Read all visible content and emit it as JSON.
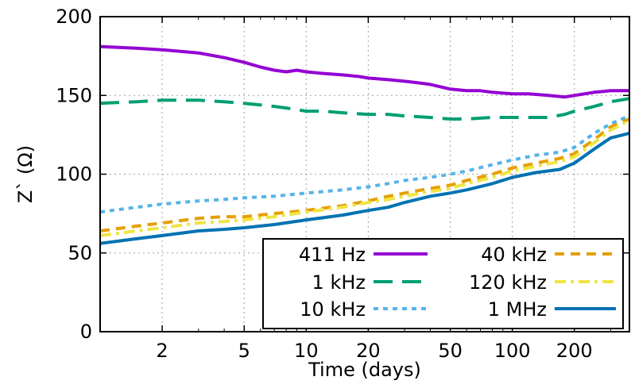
{
  "chart_data": {
    "type": "line",
    "xlabel": "Time (days)",
    "ylabel": "Z` (Ω)",
    "x_scale": "log",
    "xlim": [
      1,
      370
    ],
    "ylim": [
      0,
      200
    ],
    "x_ticks": [
      2,
      5,
      10,
      20,
      50,
      100,
      200
    ],
    "x_tick_labels": [
      "2",
      "5",
      "10",
      "20",
      "50",
      "100",
      "200"
    ],
    "y_ticks": [
      0,
      50,
      100,
      150,
      200
    ],
    "y_tick_labels": [
      "0",
      "50",
      "100",
      "150",
      "200"
    ],
    "grid": true,
    "legend_position": "bottom-right",
    "series": [
      {
        "name": "411 Hz",
        "color": "#9400d3",
        "dash": "solid",
        "points": [
          [
            1,
            181
          ],
          [
            1.5,
            180
          ],
          [
            2,
            179
          ],
          [
            3,
            177
          ],
          [
            4,
            174
          ],
          [
            5,
            171
          ],
          [
            6,
            168
          ],
          [
            7,
            166
          ],
          [
            8,
            165
          ],
          [
            9,
            166
          ],
          [
            10,
            165
          ],
          [
            12,
            164
          ],
          [
            15,
            163
          ],
          [
            18,
            162
          ],
          [
            20,
            161
          ],
          [
            25,
            160
          ],
          [
            30,
            159
          ],
          [
            35,
            158
          ],
          [
            40,
            157
          ],
          [
            50,
            154
          ],
          [
            60,
            153
          ],
          [
            70,
            153
          ],
          [
            80,
            152
          ],
          [
            100,
            151
          ],
          [
            120,
            151
          ],
          [
            150,
            150
          ],
          [
            180,
            149
          ],
          [
            200,
            150
          ],
          [
            250,
            152
          ],
          [
            300,
            153
          ],
          [
            370,
            153
          ]
        ]
      },
      {
        "name": "1 kHz",
        "color": "#009e73",
        "dash": "long",
        "points": [
          [
            1,
            145
          ],
          [
            1.5,
            146
          ],
          [
            2,
            147
          ],
          [
            3,
            147
          ],
          [
            4,
            146
          ],
          [
            5,
            145
          ],
          [
            6,
            144
          ],
          [
            7,
            143
          ],
          [
            8,
            142
          ],
          [
            10,
            140
          ],
          [
            12,
            140
          ],
          [
            15,
            139
          ],
          [
            20,
            138
          ],
          [
            25,
            138
          ],
          [
            30,
            137
          ],
          [
            40,
            136
          ],
          [
            50,
            135
          ],
          [
            60,
            135
          ],
          [
            80,
            136
          ],
          [
            100,
            136
          ],
          [
            150,
            136
          ],
          [
            180,
            138
          ],
          [
            200,
            140
          ],
          [
            250,
            143
          ],
          [
            300,
            146
          ],
          [
            370,
            148
          ]
        ]
      },
      {
        "name": "10 kHz",
        "color": "#56b4e9",
        "dash": "dotted",
        "points": [
          [
            1,
            76
          ],
          [
            1.5,
            79
          ],
          [
            2,
            81
          ],
          [
            3,
            83
          ],
          [
            4,
            84
          ],
          [
            5,
            85
          ],
          [
            7,
            86
          ],
          [
            10,
            88
          ],
          [
            15,
            90
          ],
          [
            20,
            92
          ],
          [
            25,
            94
          ],
          [
            30,
            96
          ],
          [
            40,
            98
          ],
          [
            50,
            100
          ],
          [
            60,
            102
          ],
          [
            80,
            106
          ],
          [
            100,
            109
          ],
          [
            130,
            112
          ],
          [
            170,
            114
          ],
          [
            200,
            117
          ],
          [
            250,
            126
          ],
          [
            300,
            132
          ],
          [
            370,
            137
          ]
        ]
      },
      {
        "name": "40 kHz",
        "color": "#e69f00",
        "dash": "dashed",
        "points": [
          [
            1,
            64
          ],
          [
            1.5,
            67
          ],
          [
            2,
            69
          ],
          [
            3,
            72
          ],
          [
            4,
            73
          ],
          [
            5,
            73
          ],
          [
            7,
            75
          ],
          [
            10,
            77
          ],
          [
            15,
            80
          ],
          [
            20,
            83
          ],
          [
            25,
            86
          ],
          [
            30,
            88
          ],
          [
            40,
            91
          ],
          [
            50,
            93
          ],
          [
            60,
            96
          ],
          [
            80,
            100
          ],
          [
            100,
            104
          ],
          [
            130,
            107
          ],
          [
            170,
            110
          ],
          [
            200,
            113
          ],
          [
            250,
            122
          ],
          [
            300,
            130
          ],
          [
            370,
            135
          ]
        ]
      },
      {
        "name": "120 kHz",
        "color": "#f0e442",
        "dash": "dashdot",
        "points": [
          [
            1,
            61
          ],
          [
            1.5,
            64
          ],
          [
            2,
            66
          ],
          [
            3,
            69
          ],
          [
            4,
            70
          ],
          [
            5,
            71
          ],
          [
            7,
            73
          ],
          [
            10,
            76
          ],
          [
            15,
            79
          ],
          [
            20,
            82
          ],
          [
            25,
            84
          ],
          [
            30,
            86
          ],
          [
            40,
            89
          ],
          [
            50,
            91
          ],
          [
            60,
            94
          ],
          [
            80,
            98
          ],
          [
            100,
            102
          ],
          [
            130,
            105
          ],
          [
            170,
            108
          ],
          [
            200,
            111
          ],
          [
            250,
            120
          ],
          [
            300,
            128
          ],
          [
            370,
            134
          ]
        ]
      },
      {
        "name": "1 MHz",
        "color": "#0072b2",
        "dash": "solid",
        "points": [
          [
            1,
            56
          ],
          [
            1.5,
            59
          ],
          [
            2,
            61
          ],
          [
            3,
            64
          ],
          [
            4,
            65
          ],
          [
            5,
            66
          ],
          [
            7,
            68
          ],
          [
            10,
            71
          ],
          [
            15,
            74
          ],
          [
            20,
            77
          ],
          [
            25,
            79
          ],
          [
            30,
            82
          ],
          [
            40,
            86
          ],
          [
            50,
            88
          ],
          [
            60,
            90
          ],
          [
            80,
            94
          ],
          [
            100,
            98
          ],
          [
            130,
            101
          ],
          [
            170,
            103
          ],
          [
            200,
            107
          ],
          [
            250,
            116
          ],
          [
            300,
            123
          ],
          [
            370,
            126
          ]
        ]
      }
    ]
  }
}
